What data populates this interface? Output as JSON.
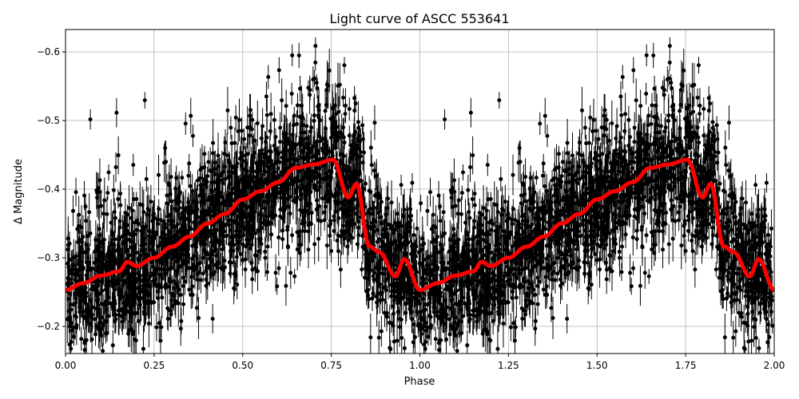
{
  "chart_data": {
    "type": "scatter",
    "title": "Light curve of ASCC 553641",
    "xlabel": "Phase",
    "ylabel": "Δ Magnitude",
    "xlim": [
      0,
      2
    ],
    "ylim": [
      -0.1605,
      -0.6326
    ],
    "y_inverted": true,
    "grid": true,
    "x_ticks": [
      "0.00",
      "0.25",
      "0.50",
      "0.75",
      "1.00",
      "1.25",
      "1.50",
      "1.75",
      "2.00"
    ],
    "x_tick_values": [
      0,
      0.25,
      0.5,
      0.75,
      1,
      1.25,
      1.5,
      1.75,
      2
    ],
    "y_ticks": [
      "−0.2",
      "−0.3",
      "−0.4",
      "−0.5",
      "−0.6"
    ],
    "y_tick_values": [
      -0.2,
      -0.3,
      -0.4,
      -0.5,
      -0.6
    ],
    "observations": {
      "color": "#000000",
      "marker": "circle with error bars",
      "repeated_over_two_cycles": true
    },
    "model": {
      "color": "#ff0000",
      "phase": [
        0.0,
        0.05,
        0.1,
        0.15,
        0.175,
        0.2,
        0.25,
        0.3,
        0.35,
        0.4,
        0.45,
        0.5,
        0.55,
        0.6,
        0.65,
        0.7,
        0.755,
        0.798,
        0.821,
        0.857,
        0.886,
        0.931,
        0.956,
        1.0
      ],
      "magnitude": [
        -0.253,
        -0.263,
        -0.274,
        -0.28,
        -0.294,
        -0.288,
        -0.3,
        -0.316,
        -0.331,
        -0.35,
        -0.364,
        -0.385,
        -0.397,
        -0.41,
        -0.431,
        -0.436,
        -0.443,
        -0.388,
        -0.408,
        -0.317,
        -0.308,
        -0.273,
        -0.298,
        -0.253
      ]
    }
  }
}
